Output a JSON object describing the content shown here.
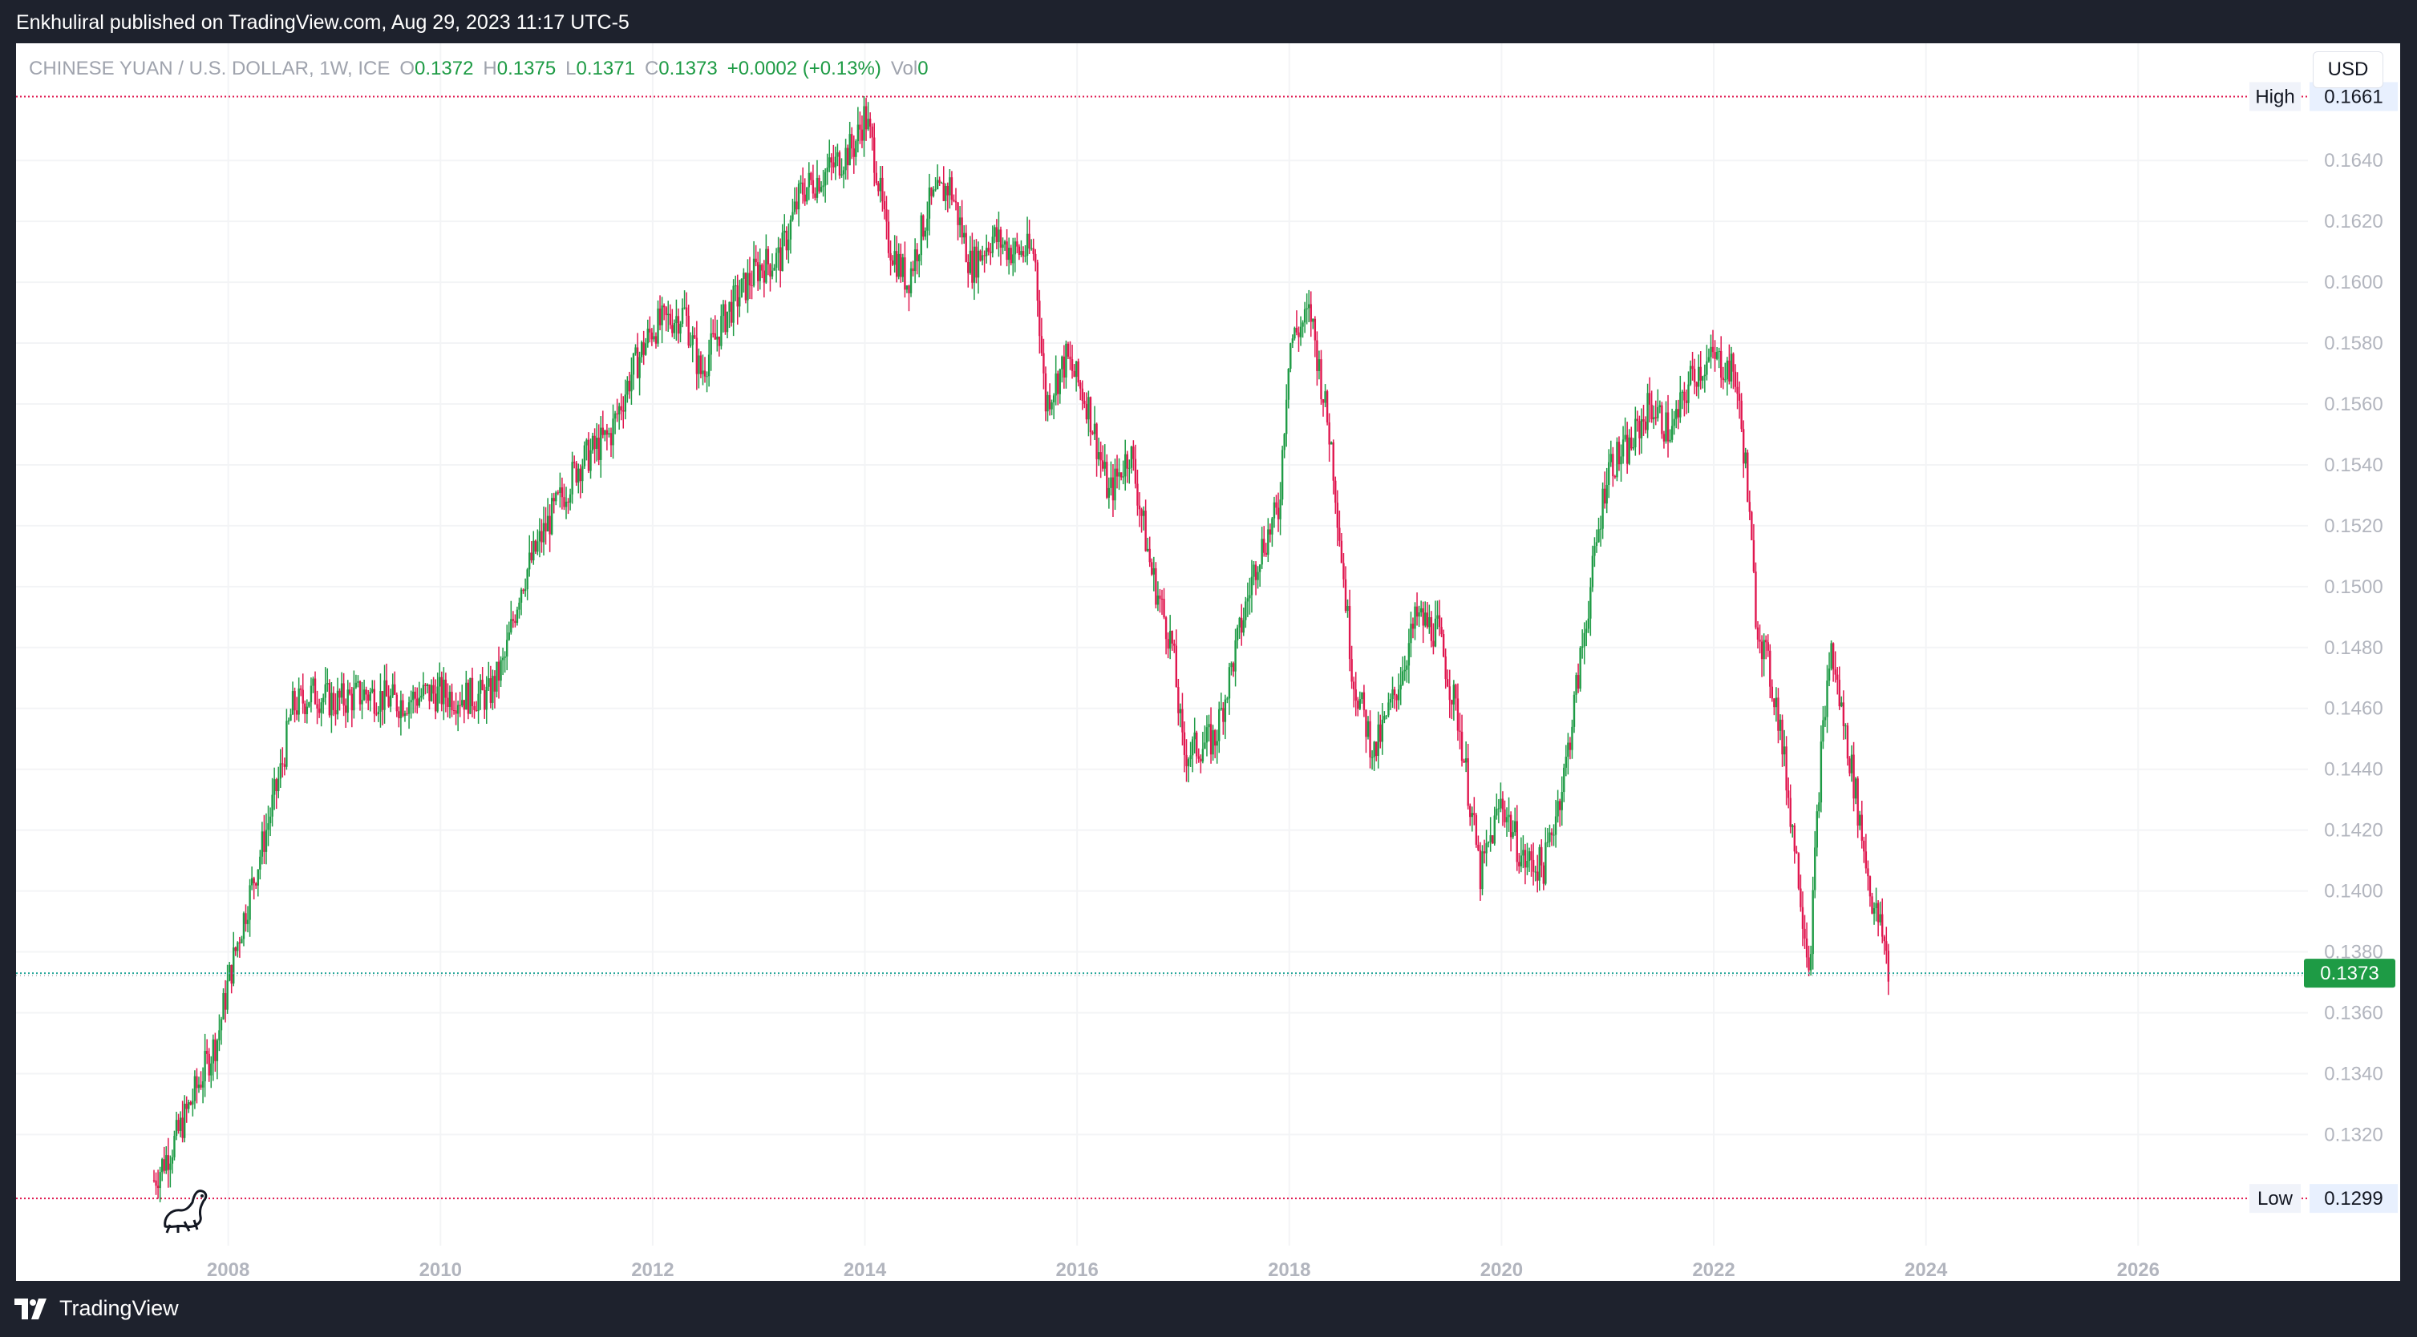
{
  "header": {
    "published_text": "Enkhuliral published on TradingView.com, Aug 29, 2023 11:17 UTC-5"
  },
  "footer": {
    "brand": "TradingView"
  },
  "legend": {
    "symbol": "CHINESE YUAN / U.S. DOLLAR, 1W, ICE",
    "open_label": "O",
    "open": "0.1372",
    "high_label": "H",
    "high": "0.1375",
    "low_label": "L",
    "low": "0.1371",
    "close_label": "C",
    "close": "0.1373",
    "change": "+0.0002 (+0.13%)",
    "vol_label": "Vol",
    "vol": "0"
  },
  "currency_button": "USD",
  "colors": {
    "up": "#1e9b45",
    "down": "#e0174f",
    "range_line": "#e0174f",
    "last_price_bg": "#1e9b45",
    "axis_text": "#b2b5be",
    "grid": "#f3f4f6"
  },
  "chart_data": {
    "type": "candlestick",
    "title": "CHINESE YUAN / U.S. DOLLAR, 1W, ICE",
    "x_ticks": [
      "2008",
      "2010",
      "2012",
      "2014",
      "2016",
      "2018",
      "2020",
      "2022",
      "2024",
      "2026"
    ],
    "x_range": [
      2006.0,
      2027.6
    ],
    "y_ticks": [
      "0.1320",
      "0.1340",
      "0.1360",
      "0.1380",
      "0.1400",
      "0.1420",
      "0.1440",
      "0.1460",
      "0.1480",
      "0.1500",
      "0.1520",
      "0.1540",
      "0.1560",
      "0.1580",
      "0.1600",
      "0.1620",
      "0.1640"
    ],
    "y_range": [
      0.12835,
      0.16785
    ],
    "high_marker": {
      "label": "High",
      "value": 0.1661,
      "text": "0.1661"
    },
    "low_marker": {
      "label": "Low",
      "value": 0.1299,
      "text": "0.1299"
    },
    "last_price": {
      "value": 0.1373,
      "text": "0.1373"
    },
    "grid": true,
    "price_path": [
      [
        2007.3,
        0.1305
      ],
      [
        2007.5,
        0.1318
      ],
      [
        2007.7,
        0.1335
      ],
      [
        2007.9,
        0.1352
      ],
      [
        2008.0,
        0.137
      ],
      [
        2008.1,
        0.1385
      ],
      [
        2008.3,
        0.1412
      ],
      [
        2008.5,
        0.144
      ],
      [
        2008.6,
        0.146
      ],
      [
        2008.8,
        0.1465
      ],
      [
        2009.0,
        0.1462
      ],
      [
        2009.3,
        0.1465
      ],
      [
        2009.6,
        0.1462
      ],
      [
        2009.9,
        0.1465
      ],
      [
        2010.2,
        0.1464
      ],
      [
        2010.45,
        0.1464
      ],
      [
        2010.6,
        0.1475
      ],
      [
        2010.75,
        0.15
      ],
      [
        2011.0,
        0.152
      ],
      [
        2011.3,
        0.154
      ],
      [
        2011.6,
        0.155
      ],
      [
        2011.8,
        0.157
      ],
      [
        2012.0,
        0.1585
      ],
      [
        2012.3,
        0.159
      ],
      [
        2012.45,
        0.157
      ],
      [
        2012.7,
        0.159
      ],
      [
        2013.0,
        0.1605
      ],
      [
        2013.2,
        0.1608
      ],
      [
        2013.4,
        0.163
      ],
      [
        2013.7,
        0.1638
      ],
      [
        2013.9,
        0.1645
      ],
      [
        2014.0,
        0.1655
      ],
      [
        2014.1,
        0.164
      ],
      [
        2014.2,
        0.1615
      ],
      [
        2014.4,
        0.16
      ],
      [
        2014.6,
        0.1625
      ],
      [
        2014.8,
        0.1632
      ],
      [
        2015.0,
        0.1605
      ],
      [
        2015.2,
        0.1615
      ],
      [
        2015.4,
        0.161
      ],
      [
        2015.6,
        0.161
      ],
      [
        2015.7,
        0.156
      ],
      [
        2015.9,
        0.1575
      ],
      [
        2016.1,
        0.156
      ],
      [
        2016.3,
        0.153
      ],
      [
        2016.5,
        0.1545
      ],
      [
        2016.7,
        0.1505
      ],
      [
        2016.9,
        0.148
      ],
      [
        2017.0,
        0.1445
      ],
      [
        2017.3,
        0.145
      ],
      [
        2017.5,
        0.148
      ],
      [
        2017.7,
        0.151
      ],
      [
        2017.9,
        0.1525
      ],
      [
        2018.0,
        0.158
      ],
      [
        2018.2,
        0.159
      ],
      [
        2018.4,
        0.1545
      ],
      [
        2018.6,
        0.147
      ],
      [
        2018.8,
        0.1445
      ],
      [
        2019.0,
        0.1465
      ],
      [
        2019.2,
        0.149
      ],
      [
        2019.4,
        0.1485
      ],
      [
        2019.6,
        0.1455
      ],
      [
        2019.8,
        0.1405
      ],
      [
        2020.0,
        0.143
      ],
      [
        2020.2,
        0.141
      ],
      [
        2020.4,
        0.1408
      ],
      [
        2020.6,
        0.144
      ],
      [
        2020.8,
        0.149
      ],
      [
        2021.0,
        0.154
      ],
      [
        2021.2,
        0.1545
      ],
      [
        2021.4,
        0.156
      ],
      [
        2021.6,
        0.155
      ],
      [
        2021.8,
        0.157
      ],
      [
        2022.0,
        0.1575
      ],
      [
        2022.2,
        0.157
      ],
      [
        2022.3,
        0.154
      ],
      [
        2022.4,
        0.149
      ],
      [
        2022.6,
        0.146
      ],
      [
        2022.8,
        0.1405
      ],
      [
        2022.9,
        0.1375
      ],
      [
        2023.0,
        0.144
      ],
      [
        2023.1,
        0.148
      ],
      [
        2023.2,
        0.146
      ],
      [
        2023.3,
        0.144
      ],
      [
        2023.5,
        0.1395
      ],
      [
        2023.6,
        0.1385
      ],
      [
        2023.65,
        0.1373
      ]
    ]
  }
}
